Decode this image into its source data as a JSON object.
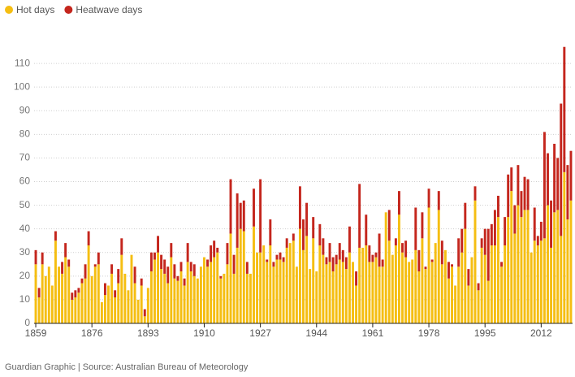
{
  "chart_data": {
    "type": "stacked_bar",
    "source": "Guardian Graphic | Source: Australian Bureau of Meteorology",
    "x": [
      1859,
      1860,
      1861,
      1862,
      1863,
      1864,
      1865,
      1866,
      1867,
      1868,
      1869,
      1870,
      1871,
      1872,
      1873,
      1874,
      1875,
      1876,
      1877,
      1878,
      1879,
      1880,
      1881,
      1882,
      1883,
      1884,
      1885,
      1886,
      1887,
      1888,
      1889,
      1890,
      1891,
      1892,
      1893,
      1894,
      1895,
      1896,
      1897,
      1898,
      1899,
      1900,
      1901,
      1902,
      1903,
      1904,
      1905,
      1906,
      1907,
      1908,
      1909,
      1910,
      1911,
      1912,
      1913,
      1914,
      1915,
      1916,
      1917,
      1918,
      1919,
      1920,
      1921,
      1922,
      1923,
      1924,
      1925,
      1926,
      1927,
      1928,
      1929,
      1930,
      1931,
      1932,
      1933,
      1934,
      1935,
      1936,
      1937,
      1938,
      1939,
      1940,
      1941,
      1942,
      1943,
      1944,
      1945,
      1946,
      1947,
      1948,
      1949,
      1950,
      1951,
      1952,
      1953,
      1954,
      1955,
      1956,
      1957,
      1958,
      1959,
      1960,
      1961,
      1962,
      1963,
      1964,
      1965,
      1966,
      1967,
      1968,
      1969,
      1970,
      1971,
      1972,
      1973,
      1974,
      1975,
      1976,
      1977,
      1978,
      1979,
      1980,
      1981,
      1982,
      1983,
      1984,
      1985,
      1986,
      1987,
      1988,
      1989,
      1990,
      1991,
      1992,
      1993,
      1994,
      1995,
      1996,
      1997,
      1998,
      1999,
      2000,
      2001,
      2002,
      2003,
      2004,
      2005,
      2006,
      2007,
      2008,
      2009,
      2010,
      2011,
      2012,
      2013,
      2014,
      2015,
      2016,
      2017,
      2018,
      2019,
      2020,
      2021
    ],
    "series": [
      {
        "name": "Hot days",
        "color": "#f5be12",
        "values": [
          25,
          11,
          25,
          20,
          24,
          16,
          35,
          24,
          21,
          28,
          24,
          10,
          11,
          13,
          17,
          19,
          33,
          20,
          24,
          25,
          9,
          12,
          16,
          21,
          11,
          17,
          29,
          21,
          14,
          29,
          17,
          10,
          16,
          3,
          15,
          22,
          27,
          30,
          23,
          21,
          17,
          28,
          19,
          18,
          22,
          16,
          26,
          22,
          20,
          19,
          24,
          28,
          24,
          26,
          28,
          30,
          19,
          21,
          25,
          38,
          21,
          32,
          40,
          39,
          21,
          21,
          41,
          30,
          30,
          33,
          26,
          33,
          24,
          27,
          27,
          26,
          32,
          34,
          35,
          24,
          40,
          31,
          37,
          23,
          36,
          22,
          33,
          29,
          25,
          26,
          22,
          25,
          27,
          26,
          23,
          30,
          26,
          16,
          32,
          32,
          33,
          26,
          26,
          28,
          24,
          24,
          47,
          35,
          29,
          33,
          46,
          30,
          28,
          26,
          27,
          31,
          22,
          36,
          23,
          49,
          26,
          34,
          48,
          25,
          31,
          19,
          24,
          16,
          24,
          30,
          40,
          16,
          28,
          52,
          14,
          32,
          29,
          18,
          33,
          33,
          45,
          24,
          33,
          45,
          56,
          38,
          50,
          45,
          48,
          48,
          30,
          35,
          33,
          35,
          36,
          50,
          32,
          47,
          48,
          37,
          64,
          44,
          52
        ]
      },
      {
        "name": "Heatwave days",
        "color": "#c4261d",
        "values": [
          6,
          4,
          5,
          0,
          0,
          0,
          4,
          0,
          5,
          6,
          3,
          3,
          3,
          2,
          2,
          6,
          6,
          0,
          1,
          5,
          0,
          5,
          0,
          4,
          3,
          6,
          7,
          0,
          0,
          0,
          7,
          0,
          3,
          3,
          0,
          8,
          3,
          7,
          6,
          6,
          7,
          6,
          6,
          2,
          4,
          3,
          8,
          4,
          5,
          0,
          0,
          0,
          3,
          7,
          7,
          2,
          1,
          0,
          9,
          23,
          8,
          23,
          11,
          13,
          5,
          0,
          16,
          0,
          31,
          0,
          1,
          11,
          2,
          2,
          3,
          2,
          4,
          0,
          3,
          0,
          18,
          13,
          14,
          0,
          9,
          0,
          9,
          7,
          3,
          8,
          6,
          4,
          7,
          5,
          5,
          11,
          0,
          6,
          27,
          0,
          13,
          7,
          3,
          2,
          14,
          3,
          0,
          13,
          0,
          3,
          10,
          4,
          7,
          0,
          0,
          18,
          9,
          11,
          1,
          8,
          1,
          0,
          8,
          10,
          0,
          7,
          1,
          0,
          12,
          10,
          11,
          7,
          0,
          6,
          3,
          4,
          11,
          22,
          9,
          15,
          9,
          2,
          12,
          18,
          10,
          12,
          17,
          11,
          14,
          13,
          0,
          14,
          4,
          8,
          45,
          22,
          20,
          29,
          22,
          56,
          53,
          23,
          21
        ]
      }
    ],
    "xlim": [
      1858.5,
      2021.5
    ],
    "xticks": [
      1859,
      1876,
      1893,
      1910,
      1927,
      1944,
      1961,
      1978,
      1995,
      2012
    ],
    "ylim": [
      0,
      120
    ],
    "yticks": [
      0,
      10,
      20,
      30,
      40,
      50,
      60,
      70,
      80,
      90,
      100,
      110
    ],
    "grid": true,
    "legend": "top-left"
  }
}
